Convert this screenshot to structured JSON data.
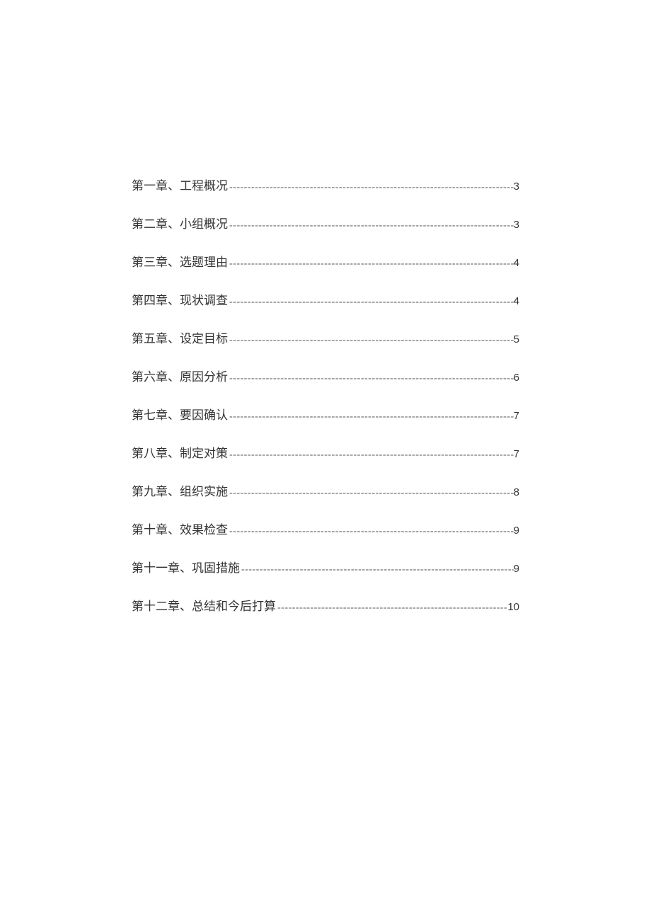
{
  "toc": {
    "leader_char": "-",
    "text_color": "#333333",
    "leader_color": "#555555",
    "background_color": "#ffffff",
    "label_fontsize": 17,
    "page_fontsize": 15,
    "row_spacing": 29,
    "entries": [
      {
        "label": "第一章、工程概况",
        "page": "3"
      },
      {
        "label": "第二章、小组概况",
        "page": "3"
      },
      {
        "label": "第三章、选题理由",
        "page": "4"
      },
      {
        "label": "第四章、现状调查",
        "page": "4"
      },
      {
        "label": "第五章、设定目标",
        "page": "5"
      },
      {
        "label": "第六章、原因分析",
        "page": "6"
      },
      {
        "label": "第七章、要因确认",
        "page": "7"
      },
      {
        "label": "第八章、制定对策",
        "page": "7"
      },
      {
        "label": "第九章、组织实施",
        "page": "8"
      },
      {
        "label": "第十章、效果检查",
        "page": "9"
      },
      {
        "label": "第十一章、巩固措施",
        "page": "9"
      },
      {
        "label": "第十二章、总结和今后打算",
        "page": "10"
      }
    ]
  }
}
